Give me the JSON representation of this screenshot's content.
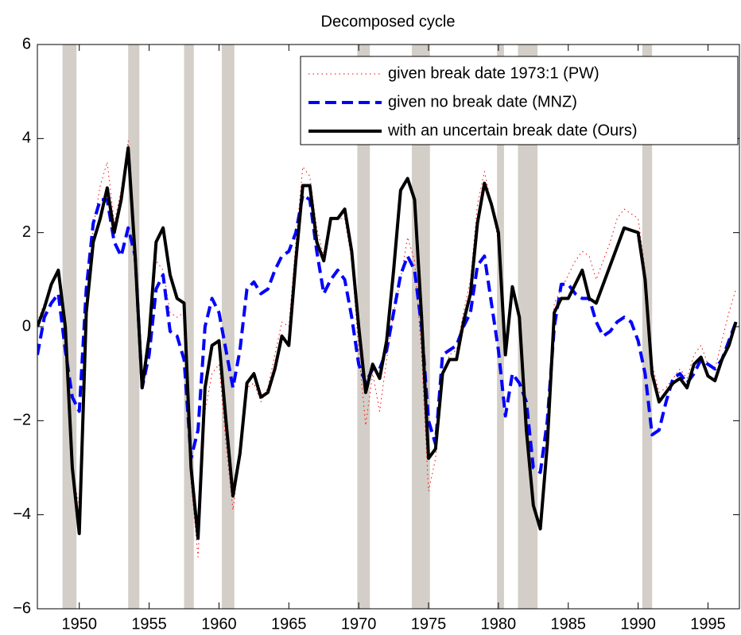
{
  "chart_data": {
    "type": "line",
    "title": "Decomposed cycle",
    "x": [
      1947,
      1947.5,
      1948,
      1948.5,
      1949,
      1949.5,
      1950,
      1950.5,
      1951,
      1951.5,
      1952,
      1952.5,
      1953,
      1953.5,
      1954,
      1954.5,
      1955,
      1955.5,
      1956,
      1956.5,
      1957,
      1957.5,
      1958,
      1958.5,
      1959,
      1959.5,
      1960,
      1960.5,
      1961,
      1961.5,
      1962,
      1962.5,
      1963,
      1963.5,
      1964,
      1964.5,
      1965,
      1965.5,
      1966,
      1966.5,
      1967,
      1967.5,
      1968,
      1968.5,
      1969,
      1969.5,
      1970,
      1970.5,
      1971,
      1971.5,
      1972,
      1972.5,
      1973,
      1973.5,
      1974,
      1974.5,
      1975,
      1975.5,
      1976,
      1976.5,
      1977,
      1977.5,
      1978,
      1978.5,
      1979,
      1979.5,
      1980,
      1980.5,
      1981,
      1981.5,
      1982,
      1982.5,
      1983,
      1983.5,
      1984,
      1984.5,
      1985,
      1985.5,
      1986,
      1986.5,
      1987,
      1987.5,
      1988,
      1988.5,
      1989,
      1989.5,
      1990,
      1990.5,
      1991,
      1991.5,
      1992,
      1992.5,
      1993,
      1993.5,
      1994,
      1994.5,
      1995,
      1995.5,
      1996,
      1996.5,
      1997
    ],
    "series": [
      {
        "name": "given break date 1973:1 (PW)",
        "color": "#ff0000",
        "linestyle": "dotted",
        "values": [
          0.1,
          0.5,
          0.9,
          1.1,
          -0.2,
          -3.1,
          -3.8,
          0.5,
          2.1,
          3.0,
          3.5,
          2.2,
          2.9,
          3.95,
          1.4,
          -1.2,
          -0.3,
          1.4,
          1.2,
          0.3,
          0.2,
          0.3,
          -3.3,
          -4.9,
          -1.8,
          -1.0,
          -0.8,
          -2.5,
          -3.9,
          -2.7,
          -1.3,
          -1.2,
          -1.6,
          -1.3,
          -0.6,
          0.1,
          0.0,
          1.8,
          3.4,
          3.2,
          2.1,
          1.5,
          2.3,
          2.3,
          2.3,
          1.4,
          -0.5,
          -2.1,
          -1.0,
          -1.8,
          -0.7,
          0.3,
          1.0,
          1.9,
          1.4,
          -0.6,
          -3.5,
          -2.8,
          -1.0,
          -0.6,
          -0.5,
          0.3,
          1.0,
          2.6,
          3.3,
          2.6,
          1.8,
          -0.5,
          0.8,
          0.1,
          -2.4,
          -3.9,
          -4.2,
          -2.3,
          0.5,
          0.8,
          1.1,
          1.4,
          1.6,
          1.5,
          1.0,
          1.4,
          1.8,
          2.3,
          2.5,
          2.4,
          2.3,
          1.2,
          -0.8,
          -1.4,
          -1.3,
          -1.1,
          -0.9,
          -1.1,
          -0.6,
          -0.4,
          -0.8,
          -0.9,
          -0.3,
          0.3,
          0.8
        ]
      },
      {
        "name": "given no break date (MNZ)",
        "color": "#0000ff",
        "linestyle": "dashed",
        "values": [
          -0.6,
          0.2,
          0.5,
          0.7,
          -0.5,
          -1.5,
          -1.8,
          0.8,
          2.2,
          2.7,
          2.7,
          1.8,
          1.5,
          2.1,
          1.5,
          -1.3,
          -0.6,
          0.8,
          1.1,
          -0.1,
          -0.2,
          -0.7,
          -2.8,
          -2.2,
          0.0,
          0.6,
          0.3,
          -0.5,
          -1.3,
          -0.5,
          0.8,
          0.95,
          0.7,
          0.8,
          1.2,
          1.5,
          1.6,
          2.0,
          2.8,
          2.7,
          1.6,
          0.7,
          1.0,
          1.2,
          1.0,
          0.2,
          -0.8,
          -1.2,
          -0.9,
          -0.9,
          -0.5,
          0.3,
          1.1,
          1.5,
          1.2,
          0.0,
          -2.0,
          -2.5,
          -0.6,
          -0.5,
          -0.4,
          0.0,
          0.3,
          1.3,
          1.5,
          0.5,
          -0.5,
          -1.9,
          -1.0,
          -1.2,
          -1.6,
          -3.0,
          -3.1,
          -2.0,
          0.0,
          0.9,
          0.9,
          0.7,
          0.6,
          0.6,
          0.1,
          -0.2,
          -0.1,
          0.1,
          0.2,
          0.1,
          -0.3,
          -1.0,
          -2.3,
          -2.2,
          -1.6,
          -1.1,
          -1.0,
          -1.2,
          -1.0,
          -0.7,
          -0.8,
          -0.9,
          -0.7,
          -0.3,
          0.1
        ]
      },
      {
        "name": "with an uncertain break date (Ours)",
        "color": "#000000",
        "linestyle": "solid",
        "values": [
          0,
          0.4,
          0.9,
          1.2,
          0.0,
          -3.0,
          -4.4,
          0.3,
          1.8,
          2.3,
          2.95,
          2.0,
          2.7,
          3.8,
          1.5,
          -1.3,
          -0.2,
          1.8,
          2.1,
          1.1,
          0.6,
          0.5,
          -3.0,
          -4.5,
          -1.3,
          -0.4,
          -0.3,
          -2.0,
          -3.6,
          -2.7,
          -1.2,
          -1.0,
          -1.5,
          -1.4,
          -0.9,
          -0.2,
          -0.4,
          1.4,
          3.0,
          3.0,
          1.8,
          1.4,
          2.3,
          2.3,
          2.5,
          1.6,
          0.0,
          -1.4,
          -0.8,
          -1.1,
          -0.3,
          1.2,
          2.9,
          3.15,
          2.7,
          0.2,
          -2.8,
          -2.6,
          -1.0,
          -0.7,
          -0.7,
          0.1,
          0.7,
          2.2,
          3.05,
          2.6,
          2.0,
          -0.6,
          0.85,
          0.2,
          -2.2,
          -3.8,
          -4.3,
          -2.5,
          0.3,
          0.6,
          0.6,
          0.9,
          1.2,
          0.6,
          0.5,
          0.9,
          1.3,
          1.7,
          2.1,
          2.05,
          2.0,
          1.0,
          -1.0,
          -1.6,
          -1.4,
          -1.2,
          -1.1,
          -1.3,
          -0.8,
          -0.65,
          -1.05,
          -1.15,
          -0.7,
          -0.4,
          0.1
        ]
      }
    ],
    "shading": [
      [
        1948.8,
        1949.8
      ],
      [
        1953.5,
        1954.3
      ],
      [
        1957.5,
        1958.2
      ],
      [
        1960.2,
        1961.1
      ],
      [
        1969.9,
        1970.8
      ],
      [
        1973.8,
        1975.1
      ],
      [
        1979.9,
        1980.4
      ],
      [
        1981.4,
        1982.8
      ],
      [
        1990.3,
        1991.0
      ]
    ],
    "shading_color": "#d3cec7",
    "xlim": [
      1947,
      1997.25
    ],
    "xticks": [
      1950,
      1955,
      1960,
      1965,
      1970,
      1975,
      1980,
      1985,
      1990,
      1995
    ],
    "ylim": [
      -6,
      6
    ],
    "yticks": [
      {
        "value": -6,
        "label": "−6"
      },
      {
        "value": -4,
        "label": "−4"
      },
      {
        "value": -2,
        "label": "−2"
      },
      0,
      2,
      4,
      6
    ],
    "legend": "upper right",
    "grid": false
  }
}
